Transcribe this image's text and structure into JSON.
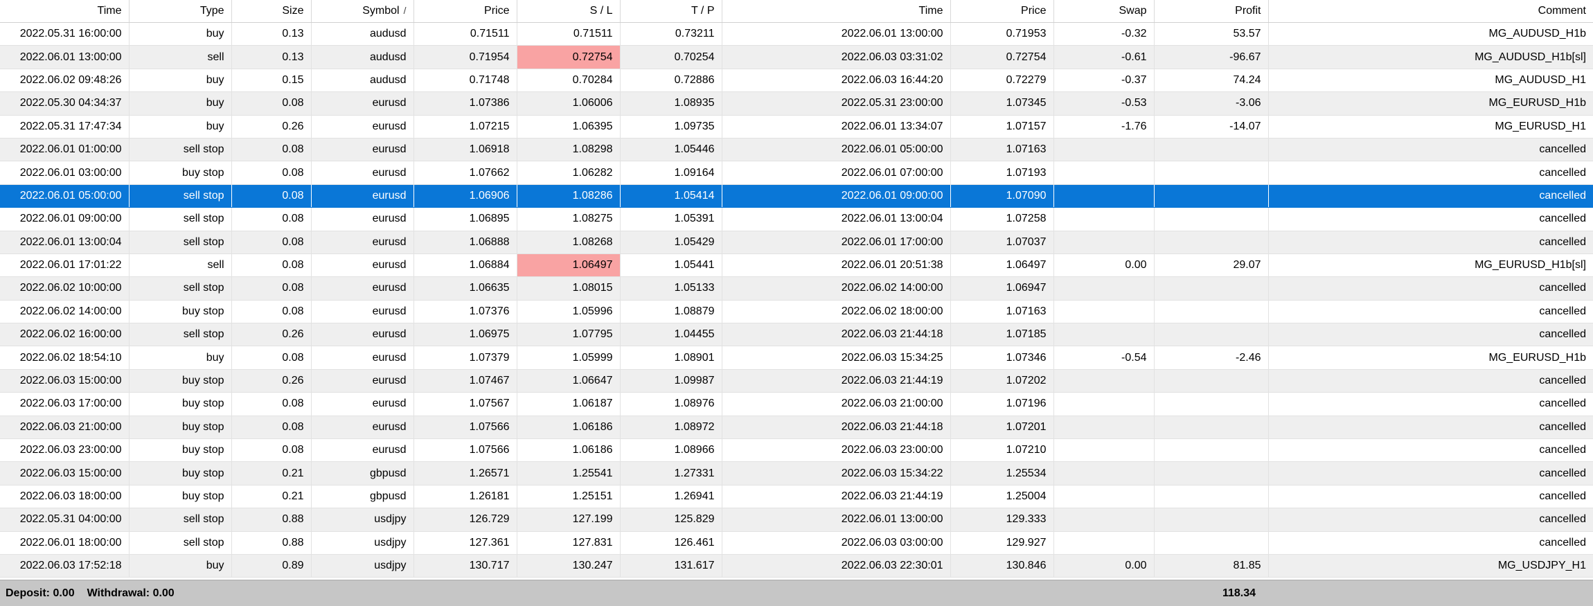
{
  "table": {
    "columns": [
      {
        "key": "open_time",
        "label": "Time"
      },
      {
        "key": "type",
        "label": "Type"
      },
      {
        "key": "size",
        "label": "Size"
      },
      {
        "key": "symbol",
        "label": "Symbol"
      },
      {
        "key": "open_price",
        "label": "Price"
      },
      {
        "key": "sl",
        "label": "S / L"
      },
      {
        "key": "tp",
        "label": "T / P"
      },
      {
        "key": "close_time",
        "label": "Time"
      },
      {
        "key": "close_price",
        "label": "Price"
      },
      {
        "key": "swap",
        "label": "Swap"
      },
      {
        "key": "profit",
        "label": "Profit"
      },
      {
        "key": "comment",
        "label": "Comment"
      }
    ],
    "sort_column": "symbol",
    "sort_indicator": "/",
    "rows": [
      {
        "open_time": "2022.05.31 16:00:00",
        "type": "buy",
        "size": "0.13",
        "symbol": "audusd",
        "open_price": "0.71511",
        "sl": "0.71511",
        "tp": "0.73211",
        "close_time": "2022.06.01 13:00:00",
        "close_price": "0.71953",
        "swap": "-0.32",
        "profit": "53.57",
        "comment": "MG_AUDUSD_H1b",
        "sl_highlight": false,
        "selected": false
      },
      {
        "open_time": "2022.06.01 13:00:00",
        "type": "sell",
        "size": "0.13",
        "symbol": "audusd",
        "open_price": "0.71954",
        "sl": "0.72754",
        "tp": "0.70254",
        "close_time": "2022.06.03 03:31:02",
        "close_price": "0.72754",
        "swap": "-0.61",
        "profit": "-96.67",
        "comment": "MG_AUDUSD_H1b[sl]",
        "sl_highlight": true,
        "selected": false
      },
      {
        "open_time": "2022.06.02 09:48:26",
        "type": "buy",
        "size": "0.15",
        "symbol": "audusd",
        "open_price": "0.71748",
        "sl": "0.70284",
        "tp": "0.72886",
        "close_time": "2022.06.03 16:44:20",
        "close_price": "0.72279",
        "swap": "-0.37",
        "profit": "74.24",
        "comment": "MG_AUDUSD_H1",
        "sl_highlight": false,
        "selected": false
      },
      {
        "open_time": "2022.05.30 04:34:37",
        "type": "buy",
        "size": "0.08",
        "symbol": "eurusd",
        "open_price": "1.07386",
        "sl": "1.06006",
        "tp": "1.08935",
        "close_time": "2022.05.31 23:00:00",
        "close_price": "1.07345",
        "swap": "-0.53",
        "profit": "-3.06",
        "comment": "MG_EURUSD_H1b",
        "sl_highlight": false,
        "selected": false
      },
      {
        "open_time": "2022.05.31 17:47:34",
        "type": "buy",
        "size": "0.26",
        "symbol": "eurusd",
        "open_price": "1.07215",
        "sl": "1.06395",
        "tp": "1.09735",
        "close_time": "2022.06.01 13:34:07",
        "close_price": "1.07157",
        "swap": "-1.76",
        "profit": "-14.07",
        "comment": "MG_EURUSD_H1",
        "sl_highlight": false,
        "selected": false
      },
      {
        "open_time": "2022.06.01 01:00:00",
        "type": "sell stop",
        "size": "0.08",
        "symbol": "eurusd",
        "open_price": "1.06918",
        "sl": "1.08298",
        "tp": "1.05446",
        "close_time": "2022.06.01 05:00:00",
        "close_price": "1.07163",
        "swap": "",
        "profit": "",
        "comment": "cancelled",
        "sl_highlight": false,
        "selected": false
      },
      {
        "open_time": "2022.06.01 03:00:00",
        "type": "buy stop",
        "size": "0.08",
        "symbol": "eurusd",
        "open_price": "1.07662",
        "sl": "1.06282",
        "tp": "1.09164",
        "close_time": "2022.06.01 07:00:00",
        "close_price": "1.07193",
        "swap": "",
        "profit": "",
        "comment": "cancelled",
        "sl_highlight": false,
        "selected": false
      },
      {
        "open_time": "2022.06.01 05:00:00",
        "type": "sell stop",
        "size": "0.08",
        "symbol": "eurusd",
        "open_price": "1.06906",
        "sl": "1.08286",
        "tp": "1.05414",
        "close_time": "2022.06.01 09:00:00",
        "close_price": "1.07090",
        "swap": "",
        "profit": "",
        "comment": "cancelled",
        "sl_highlight": false,
        "selected": true
      },
      {
        "open_time": "2022.06.01 09:00:00",
        "type": "sell stop",
        "size": "0.08",
        "symbol": "eurusd",
        "open_price": "1.06895",
        "sl": "1.08275",
        "tp": "1.05391",
        "close_time": "2022.06.01 13:00:04",
        "close_price": "1.07258",
        "swap": "",
        "profit": "",
        "comment": "cancelled",
        "sl_highlight": false,
        "selected": false
      },
      {
        "open_time": "2022.06.01 13:00:04",
        "type": "sell stop",
        "size": "0.08",
        "symbol": "eurusd",
        "open_price": "1.06888",
        "sl": "1.08268",
        "tp": "1.05429",
        "close_time": "2022.06.01 17:00:00",
        "close_price": "1.07037",
        "swap": "",
        "profit": "",
        "comment": "cancelled",
        "sl_highlight": false,
        "selected": false
      },
      {
        "open_time": "2022.06.01 17:01:22",
        "type": "sell",
        "size": "0.08",
        "symbol": "eurusd",
        "open_price": "1.06884",
        "sl": "1.06497",
        "tp": "1.05441",
        "close_time": "2022.06.01 20:51:38",
        "close_price": "1.06497",
        "swap": "0.00",
        "profit": "29.07",
        "comment": "MG_EURUSD_H1b[sl]",
        "sl_highlight": true,
        "selected": false
      },
      {
        "open_time": "2022.06.02 10:00:00",
        "type": "sell stop",
        "size": "0.08",
        "symbol": "eurusd",
        "open_price": "1.06635",
        "sl": "1.08015",
        "tp": "1.05133",
        "close_time": "2022.06.02 14:00:00",
        "close_price": "1.06947",
        "swap": "",
        "profit": "",
        "comment": "cancelled",
        "sl_highlight": false,
        "selected": false
      },
      {
        "open_time": "2022.06.02 14:00:00",
        "type": "buy stop",
        "size": "0.08",
        "symbol": "eurusd",
        "open_price": "1.07376",
        "sl": "1.05996",
        "tp": "1.08879",
        "close_time": "2022.06.02 18:00:00",
        "close_price": "1.07163",
        "swap": "",
        "profit": "",
        "comment": "cancelled",
        "sl_highlight": false,
        "selected": false
      },
      {
        "open_time": "2022.06.02 16:00:00",
        "type": "sell stop",
        "size": "0.26",
        "symbol": "eurusd",
        "open_price": "1.06975",
        "sl": "1.07795",
        "tp": "1.04455",
        "close_time": "2022.06.03 21:44:18",
        "close_price": "1.07185",
        "swap": "",
        "profit": "",
        "comment": "cancelled",
        "sl_highlight": false,
        "selected": false
      },
      {
        "open_time": "2022.06.02 18:54:10",
        "type": "buy",
        "size": "0.08",
        "symbol": "eurusd",
        "open_price": "1.07379",
        "sl": "1.05999",
        "tp": "1.08901",
        "close_time": "2022.06.03 15:34:25",
        "close_price": "1.07346",
        "swap": "-0.54",
        "profit": "-2.46",
        "comment": "MG_EURUSD_H1b",
        "sl_highlight": false,
        "selected": false
      },
      {
        "open_time": "2022.06.03 15:00:00",
        "type": "buy stop",
        "size": "0.26",
        "symbol": "eurusd",
        "open_price": "1.07467",
        "sl": "1.06647",
        "tp": "1.09987",
        "close_time": "2022.06.03 21:44:19",
        "close_price": "1.07202",
        "swap": "",
        "profit": "",
        "comment": "cancelled",
        "sl_highlight": false,
        "selected": false
      },
      {
        "open_time": "2022.06.03 17:00:00",
        "type": "buy stop",
        "size": "0.08",
        "symbol": "eurusd",
        "open_price": "1.07567",
        "sl": "1.06187",
        "tp": "1.08976",
        "close_time": "2022.06.03 21:00:00",
        "close_price": "1.07196",
        "swap": "",
        "profit": "",
        "comment": "cancelled",
        "sl_highlight": false,
        "selected": false
      },
      {
        "open_time": "2022.06.03 21:00:00",
        "type": "buy stop",
        "size": "0.08",
        "symbol": "eurusd",
        "open_price": "1.07566",
        "sl": "1.06186",
        "tp": "1.08972",
        "close_time": "2022.06.03 21:44:18",
        "close_price": "1.07201",
        "swap": "",
        "profit": "",
        "comment": "cancelled",
        "sl_highlight": false,
        "selected": false
      },
      {
        "open_time": "2022.06.03 23:00:00",
        "type": "buy stop",
        "size": "0.08",
        "symbol": "eurusd",
        "open_price": "1.07566",
        "sl": "1.06186",
        "tp": "1.08966",
        "close_time": "2022.06.03 23:00:00",
        "close_price": "1.07210",
        "swap": "",
        "profit": "",
        "comment": "cancelled",
        "sl_highlight": false,
        "selected": false
      },
      {
        "open_time": "2022.06.03 15:00:00",
        "type": "buy stop",
        "size": "0.21",
        "symbol": "gbpusd",
        "open_price": "1.26571",
        "sl": "1.25541",
        "tp": "1.27331",
        "close_time": "2022.06.03 15:34:22",
        "close_price": "1.25534",
        "swap": "",
        "profit": "",
        "comment": "cancelled",
        "sl_highlight": false,
        "selected": false
      },
      {
        "open_time": "2022.06.03 18:00:00",
        "type": "buy stop",
        "size": "0.21",
        "symbol": "gbpusd",
        "open_price": "1.26181",
        "sl": "1.25151",
        "tp": "1.26941",
        "close_time": "2022.06.03 21:44:19",
        "close_price": "1.25004",
        "swap": "",
        "profit": "",
        "comment": "cancelled",
        "sl_highlight": false,
        "selected": false
      },
      {
        "open_time": "2022.05.31 04:00:00",
        "type": "sell stop",
        "size": "0.88",
        "symbol": "usdjpy",
        "open_price": "126.729",
        "sl": "127.199",
        "tp": "125.829",
        "close_time": "2022.06.01 13:00:00",
        "close_price": "129.333",
        "swap": "",
        "profit": "",
        "comment": "cancelled",
        "sl_highlight": false,
        "selected": false
      },
      {
        "open_time": "2022.06.01 18:00:00",
        "type": "sell stop",
        "size": "0.88",
        "symbol": "usdjpy",
        "open_price": "127.361",
        "sl": "127.831",
        "tp": "126.461",
        "close_time": "2022.06.03 03:00:00",
        "close_price": "129.927",
        "swap": "",
        "profit": "",
        "comment": "cancelled",
        "sl_highlight": false,
        "selected": false
      },
      {
        "open_time": "2022.06.03 17:52:18",
        "type": "buy",
        "size": "0.89",
        "symbol": "usdjpy",
        "open_price": "130.717",
        "sl": "130.247",
        "tp": "131.617",
        "close_time": "2022.06.03 22:30:01",
        "close_price": "130.846",
        "swap": "0.00",
        "profit": "81.85",
        "comment": "MG_USDJPY_H1",
        "sl_highlight": false,
        "selected": false
      }
    ]
  },
  "footer": {
    "deposit": "Deposit: 0.00",
    "withdrawal": "Withdrawal: 0.00",
    "total_profit": "118.34"
  },
  "colors": {
    "selection": "#0a77d7",
    "sl_highlight": "#f9a3a3",
    "row_alt": "#efefef",
    "footer_bg": "#c6c6c6"
  }
}
